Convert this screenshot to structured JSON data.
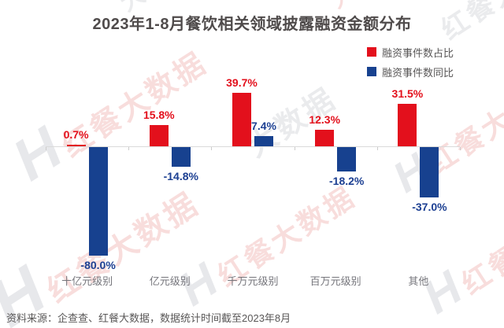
{
  "title": "2023年1-8月餐饮相关领域披露融资金额分布",
  "legend": {
    "items": [
      {
        "label": "融资事件数占比",
        "color": "#e3101c"
      },
      {
        "label": "融资事件数同比",
        "color": "#17418f"
      }
    ]
  },
  "chart_data": {
    "type": "bar",
    "title": "2023年1-8月餐饮相关领域披露融资金额分布",
    "categories": [
      "十亿元级别",
      "亿元级别",
      "千万元级别",
      "百万元级别",
      "其他"
    ],
    "series": [
      {
        "name": "融资事件数占比",
        "color": "#e3101c",
        "label_color": "#e3101c",
        "values": [
          0.7,
          15.8,
          39.7,
          12.3,
          31.5
        ]
      },
      {
        "name": "融资事件数同比",
        "color": "#17418f",
        "label_color": "#1c3f92",
        "values": [
          -80.0,
          -14.8,
          7.4,
          -18.2,
          -37.0
        ]
      }
    ],
    "value_suffix": "%",
    "xlabel": "",
    "ylabel": "",
    "ylim": [
      -80,
      40
    ],
    "grid": false,
    "legend_position": "top-right"
  },
  "source": "资料来源：企查查、红餐大数据，数据统计时间截至2023年8月",
  "watermark": {
    "logo_letter": "H",
    "brand_text": "红餐大数据",
    "brand_text_short": "大数据"
  },
  "colors": {
    "title_text": "#4f4b4b",
    "axis": "#dadada",
    "category_text": "#76767c",
    "source_text": "#595757"
  }
}
